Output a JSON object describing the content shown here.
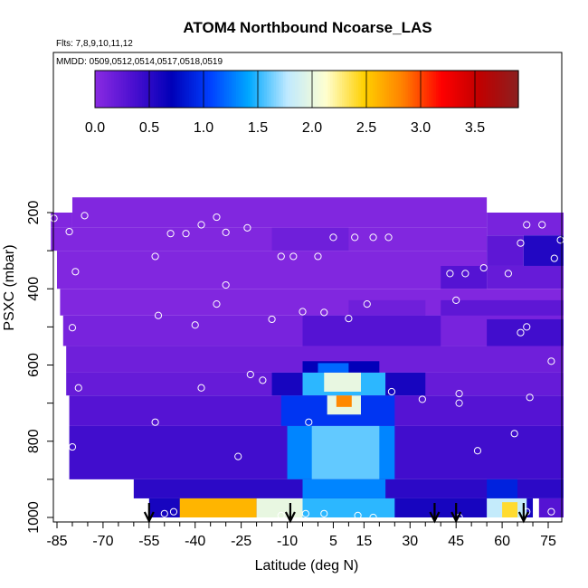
{
  "chart_data": {
    "type": "heatmap",
    "title": "ATOM4 Northbound Ncoarse_LAS",
    "subtitle_flights": "Flts: 7,8,9,10,11,12",
    "subtitle_dates": "MMDD: 0509,0512,0514,0517,0518,0519",
    "xlabel": "Latitude (deg N)",
    "ylabel": "PSXC (mbar)",
    "xlim": [
      -87,
      88
    ],
    "ylim": [
      1010,
      120
    ],
    "y_reversed": true,
    "xticks": [
      -85,
      -70,
      -55,
      -40,
      -25,
      -10,
      5,
      15,
      30,
      45,
      60,
      75
    ],
    "xtick_labels": [
      "-85",
      "-70",
      "-55",
      "-40",
      "-25",
      "-10",
      "5",
      "15",
      "30",
      "45",
      "60",
      "75"
    ],
    "yticks": [
      200,
      400,
      600,
      800,
      1000
    ],
    "ytick_labels": [
      "200",
      "400",
      "600",
      "800",
      "1000"
    ],
    "colorbar": {
      "range": [
        0,
        3.9
      ],
      "ticks": [
        0.0,
        0.5,
        1.0,
        1.5,
        2.0,
        2.5,
        3.0,
        3.5
      ],
      "tick_labels": [
        "0.0",
        "0.5",
        "1.0",
        "1.5",
        "2.0",
        "2.5",
        "3.0",
        "3.5"
      ],
      "colors": [
        "#8a2be2",
        "#4b0fd0",
        "#0000b8",
        "#0040ff",
        "#00a8ff",
        "#bfe9ff",
        "#ffffd0",
        "#ffd000",
        "#ff8000",
        "#ff0000",
        "#c00000",
        "#8b2020"
      ]
    },
    "cells": [
      {
        "lat": [
          -80,
          55
        ],
        "p": [
          160,
          240
        ],
        "v": 0.05
      },
      {
        "lat": [
          -87,
          -80
        ],
        "p": [
          200,
          240
        ],
        "v": 0.05
      },
      {
        "lat": [
          55,
          80
        ],
        "p": [
          200,
          260
        ],
        "v": 0.1
      },
      {
        "lat": [
          -87,
          55
        ],
        "p": [
          240,
          300
        ],
        "v": 0.05
      },
      {
        "lat": [
          -15,
          10
        ],
        "p": [
          240,
          300
        ],
        "v": 0.15
      },
      {
        "lat": [
          55,
          67
        ],
        "p": [
          260,
          340
        ],
        "v": 0.25
      },
      {
        "lat": [
          67,
          80
        ],
        "p": [
          260,
          340
        ],
        "v": 0.55
      },
      {
        "lat": [
          -85,
          55
        ],
        "p": [
          300,
          400
        ],
        "v": 0.05
      },
      {
        "lat": [
          40,
          55
        ],
        "p": [
          340,
          400
        ],
        "v": 0.3
      },
      {
        "lat": [
          55,
          80
        ],
        "p": [
          340,
          400
        ],
        "v": 0.2
      },
      {
        "lat": [
          -84,
          80
        ],
        "p": [
          400,
          470
        ],
        "v": 0.05
      },
      {
        "lat": [
          10,
          35
        ],
        "p": [
          430,
          470
        ],
        "v": 0.15
      },
      {
        "lat": [
          40,
          80
        ],
        "p": [
          430,
          480
        ],
        "v": 0.25
      },
      {
        "lat": [
          -83,
          80
        ],
        "p": [
          470,
          550
        ],
        "v": 0.1
      },
      {
        "lat": [
          -5,
          40
        ],
        "p": [
          470,
          550
        ],
        "v": 0.3
      },
      {
        "lat": [
          55,
          80
        ],
        "p": [
          480,
          560
        ],
        "v": 0.4
      },
      {
        "lat": [
          -82,
          80
        ],
        "p": [
          550,
          620
        ],
        "v": 0.15
      },
      {
        "lat": [
          -5,
          20
        ],
        "p": [
          590,
          620
        ],
        "v": 0.7
      },
      {
        "lat": [
          0,
          10
        ],
        "p": [
          595,
          620
        ],
        "v": 1.2
      },
      {
        "lat": [
          -82,
          80
        ],
        "p": [
          620,
          680
        ],
        "v": 0.2
      },
      {
        "lat": [
          -15,
          -5
        ],
        "p": [
          620,
          680
        ],
        "v": 0.6
      },
      {
        "lat": [
          -5,
          22
        ],
        "p": [
          620,
          680
        ],
        "v": 1.5
      },
      {
        "lat": [
          2,
          14
        ],
        "p": [
          620,
          670
        ],
        "v": 2.0
      },
      {
        "lat": [
          22,
          35
        ],
        "p": [
          620,
          680
        ],
        "v": 0.6
      },
      {
        "lat": [
          -81,
          80
        ],
        "p": [
          680,
          760
        ],
        "v": 0.3
      },
      {
        "lat": [
          -12,
          25
        ],
        "p": [
          680,
          760
        ],
        "v": 1.0
      },
      {
        "lat": [
          3,
          14
        ],
        "p": [
          680,
          730
        ],
        "v": 2.0
      },
      {
        "lat": [
          6,
          11
        ],
        "p": [
          680,
          710
        ],
        "v": 2.8
      },
      {
        "lat": [
          -81,
          80
        ],
        "p": [
          760,
          900
        ],
        "v": 0.4
      },
      {
        "lat": [
          -10,
          25
        ],
        "p": [
          760,
          900
        ],
        "v": 1.3
      },
      {
        "lat": [
          -2,
          20
        ],
        "p": [
          760,
          900
        ],
        "v": 1.6
      },
      {
        "lat": [
          -60,
          80
        ],
        "p": [
          900,
          950
        ],
        "v": 0.5
      },
      {
        "lat": [
          -5,
          22
        ],
        "p": [
          900,
          950
        ],
        "v": 1.3
      },
      {
        "lat": [
          55,
          65
        ],
        "p": [
          900,
          950
        ],
        "v": 0.9
      },
      {
        "lat": [
          -55,
          70
        ],
        "p": [
          950,
          1000
        ],
        "v": 0.6
      },
      {
        "lat": [
          -45,
          -20
        ],
        "p": [
          950,
          1000
        ],
        "v": 2.6
      },
      {
        "lat": [
          -20,
          -5
        ],
        "p": [
          950,
          1000
        ],
        "v": 2.0
      },
      {
        "lat": [
          -5,
          25
        ],
        "p": [
          950,
          1000
        ],
        "v": 1.5
      },
      {
        "lat": [
          55,
          68
        ],
        "p": [
          950,
          1000
        ],
        "v": 1.8
      },
      {
        "lat": [
          60,
          65
        ],
        "p": [
          960,
          1000
        ],
        "v": 2.4
      },
      {
        "lat": [
          72,
          80
        ],
        "p": [
          950,
          1000
        ],
        "v": 0.3
      }
    ],
    "points": [
      {
        "lat": -86,
        "p": 215
      },
      {
        "lat": -76,
        "p": 208
      },
      {
        "lat": -81,
        "p": 250
      },
      {
        "lat": -79,
        "p": 355
      },
      {
        "lat": -33,
        "p": 212
      },
      {
        "lat": -53,
        "p": 315
      },
      {
        "lat": -48,
        "p": 255
      },
      {
        "lat": -43,
        "p": 255
      },
      {
        "lat": -38,
        "p": 232
      },
      {
        "lat": -30,
        "p": 252
      },
      {
        "lat": -23,
        "p": 240
      },
      {
        "lat": -12,
        "p": 315
      },
      {
        "lat": -8,
        "p": 315
      },
      {
        "lat": 0,
        "p": 315
      },
      {
        "lat": 5,
        "p": 265
      },
      {
        "lat": 12,
        "p": 265
      },
      {
        "lat": 18,
        "p": 265
      },
      {
        "lat": 23,
        "p": 265
      },
      {
        "lat": 43,
        "p": 360
      },
      {
        "lat": 48,
        "p": 360
      },
      {
        "lat": 54,
        "p": 345
      },
      {
        "lat": 62,
        "p": 360
      },
      {
        "lat": 68,
        "p": 232
      },
      {
        "lat": 73,
        "p": 232
      },
      {
        "lat": 79,
        "p": 272
      },
      {
        "lat": 66,
        "p": 280
      },
      {
        "lat": 77,
        "p": 320
      },
      {
        "lat": 82,
        "p": 435
      },
      {
        "lat": 45,
        "p": 430
      },
      {
        "lat": 16,
        "p": 440
      },
      {
        "lat": -52,
        "p": 470
      },
      {
        "lat": -40,
        "p": 495
      },
      {
        "lat": -33,
        "p": 440
      },
      {
        "lat": -30,
        "p": 390
      },
      {
        "lat": -15,
        "p": 480
      },
      {
        "lat": -5,
        "p": 460
      },
      {
        "lat": 2,
        "p": 462
      },
      {
        "lat": 10,
        "p": 478
      },
      {
        "lat": -80,
        "p": 502
      },
      {
        "lat": 68,
        "p": 500
      },
      {
        "lat": 66,
        "p": 515
      },
      {
        "lat": 76,
        "p": 590
      },
      {
        "lat": -22,
        "p": 625
      },
      {
        "lat": -18,
        "p": 640
      },
      {
        "lat": -38,
        "p": 660
      },
      {
        "lat": -78,
        "p": 660
      },
      {
        "lat": 24,
        "p": 670
      },
      {
        "lat": 34,
        "p": 690
      },
      {
        "lat": 46,
        "p": 675
      },
      {
        "lat": 46,
        "p": 700
      },
      {
        "lat": 69,
        "p": 685
      },
      {
        "lat": -53,
        "p": 750
      },
      {
        "lat": -3,
        "p": 750
      },
      {
        "lat": 64,
        "p": 780
      },
      {
        "lat": -80,
        "p": 815
      },
      {
        "lat": 52,
        "p": 825
      },
      {
        "lat": -26,
        "p": 840
      },
      {
        "lat": -50,
        "p": 990
      },
      {
        "lat": -47,
        "p": 985
      },
      {
        "lat": -12,
        "p": 995
      },
      {
        "lat": -4,
        "p": 990
      },
      {
        "lat": 2,
        "p": 990
      },
      {
        "lat": 13,
        "p": 995
      },
      {
        "lat": 18,
        "p": 1000
      },
      {
        "lat": 46,
        "p": 1000
      },
      {
        "lat": 68,
        "p": 985
      },
      {
        "lat": 76,
        "p": 985
      },
      {
        "lat": 84,
        "p": 985
      }
    ],
    "arrows_lat": [
      -55,
      -9,
      38,
      45,
      67
    ]
  }
}
